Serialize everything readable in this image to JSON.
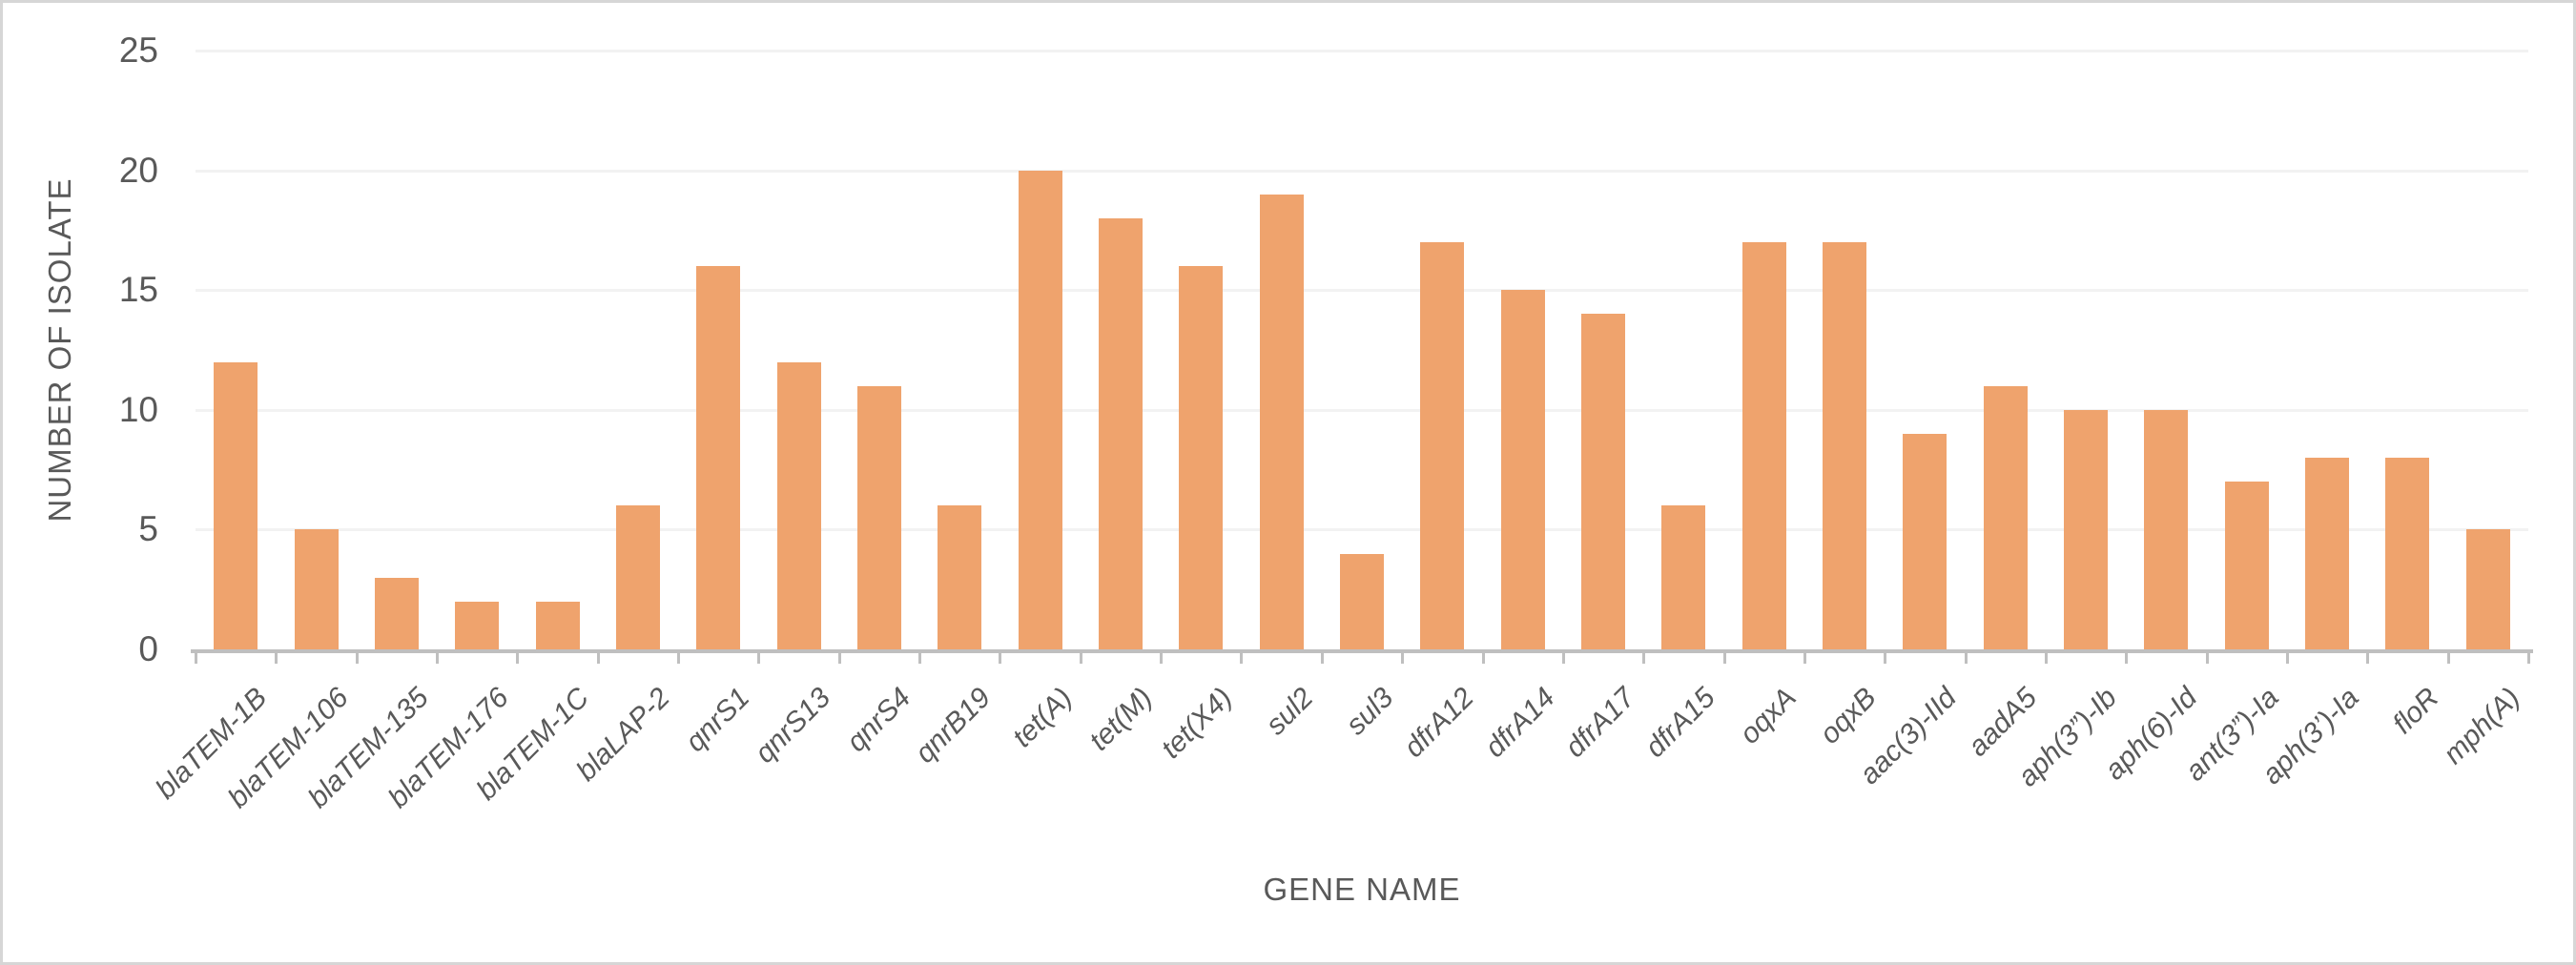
{
  "chart_data": {
    "type": "bar",
    "title": "",
    "xlabel": "GENE NAME",
    "ylabel": "NUMBER OF ISOLATE",
    "categories": [
      "blaTEM-1B",
      "blaTEM-106",
      "blaTEM-135",
      "blaTEM-176",
      "blaTEM-1C",
      "blaLAP-2",
      "qnrS1",
      "qnrS13",
      "qnrS4",
      "qnrB19",
      "tet(A)",
      "tet(M)",
      "tet(X4)",
      "sul2",
      "sul3",
      "dfrA12",
      "dfrA14",
      "dfrA17",
      "dfrA15",
      "oqxA",
      "oqxB",
      "aac(3)-IId",
      "aadA5",
      "aph(3”)-Ib",
      "aph(6)-Id",
      "ant(3”)-Ia",
      "aph(3’)-Ia",
      "floR",
      "mph(A)"
    ],
    "values": [
      12,
      5,
      3,
      2,
      2,
      6,
      16,
      12,
      11,
      6,
      20,
      18,
      16,
      19,
      4,
      17,
      15,
      14,
      6,
      17,
      17,
      9,
      11,
      10,
      10,
      7,
      8,
      8,
      5
    ],
    "ylim": [
      0,
      25
    ],
    "yticks": [
      0,
      5,
      10,
      15,
      20,
      25
    ],
    "grid": "horizontal",
    "legend": "none",
    "bar_color": "#efa36d",
    "gridline_color": "#f2f2f2",
    "axis_color": "#bfbfbf",
    "text_color": "#595959",
    "border_color": "#d6d6d6"
  }
}
